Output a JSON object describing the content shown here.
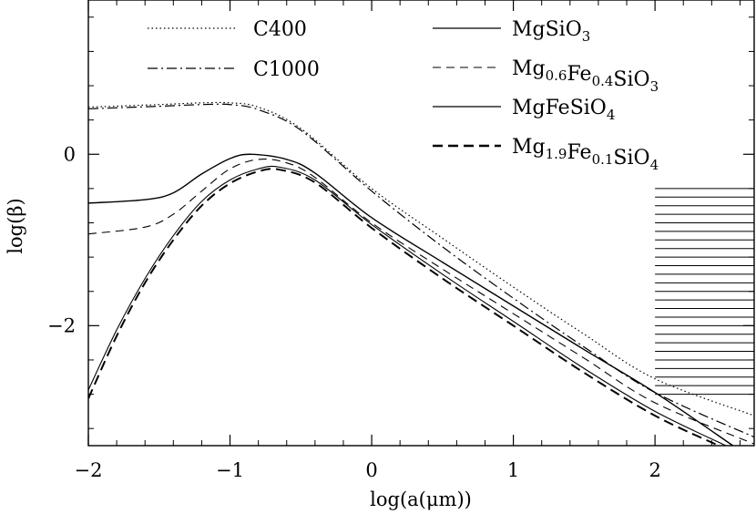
{
  "chart_data": {
    "type": "line",
    "title": "",
    "xlabel": "log(a(μm))",
    "ylabel": "log(β)",
    "xlim": [
      -2,
      2.7
    ],
    "ylim": [
      -3.4,
      1.8
    ],
    "x_ticks": [
      -2,
      -1,
      0,
      1,
      2
    ],
    "x_tick_labels": [
      "−2",
      "−1",
      "0",
      "1",
      "2"
    ],
    "y_ticks": [
      0,
      -2
    ],
    "y_tick_labels": [
      "0",
      "−2"
    ],
    "series": [
      {
        "name": "C400",
        "style": "dotted",
        "x": [
          -2,
          -1.5,
          -1.2,
          -1.0,
          -0.8,
          -0.5,
          0,
          0.5,
          1,
          1.5,
          2,
          2.7
        ],
        "y": [
          0.55,
          0.58,
          0.6,
          0.6,
          0.55,
          0.3,
          -0.4,
          -0.98,
          -1.55,
          -2.1,
          -2.62,
          -3.05
        ]
      },
      {
        "name": "C1000",
        "style": "dashdot",
        "x": [
          -2,
          -1.5,
          -1.2,
          -1.0,
          -0.8,
          -0.5,
          0,
          0.5,
          1,
          1.5,
          2,
          2.7
        ],
        "y": [
          0.53,
          0.56,
          0.58,
          0.58,
          0.52,
          0.28,
          -0.43,
          -1.08,
          -1.68,
          -2.25,
          -2.78,
          -3.3
        ]
      },
      {
        "name": "MgSiO3",
        "style": "solid",
        "width": 1.4,
        "x": [
          -2,
          -1.6,
          -1.4,
          -1.2,
          -1.0,
          -0.85,
          -0.6,
          -0.4,
          0,
          0.5,
          1,
          1.5,
          2,
          2.55
        ],
        "y": [
          -0.57,
          -0.53,
          -0.45,
          -0.23,
          -0.05,
          0.0,
          -0.06,
          -0.22,
          -0.74,
          -1.26,
          -1.77,
          -2.28,
          -2.78,
          -3.4
        ]
      },
      {
        "name": "Mg0.6Fe0.4SiO3",
        "style": "dashed",
        "width": 1.1,
        "x": [
          -2,
          -1.6,
          -1.4,
          -1.2,
          -1.0,
          -0.8,
          -0.6,
          -0.4,
          0,
          0.5,
          1,
          1.5,
          2,
          2.7
        ],
        "y": [
          -0.93,
          -0.85,
          -0.7,
          -0.43,
          -0.17,
          -0.06,
          -0.1,
          -0.27,
          -0.8,
          -1.34,
          -1.86,
          -2.38,
          -2.9,
          -3.38
        ]
      },
      {
        "name": "MgFeSiO4",
        "style": "solid",
        "width": 1.1,
        "x": [
          -2,
          -1.8,
          -1.6,
          -1.4,
          -1.2,
          -1.0,
          -0.8,
          -0.65,
          -0.4,
          0,
          0.5,
          1,
          1.5,
          2,
          2.5
        ],
        "y": [
          -2.75,
          -2.05,
          -1.45,
          -0.95,
          -0.55,
          -0.3,
          -0.17,
          -0.15,
          -0.3,
          -0.82,
          -1.4,
          -1.95,
          -2.5,
          -3.0,
          -3.4
        ]
      },
      {
        "name": "Mg1.9Fe0.1SiO4",
        "style": "dashed-bold",
        "width": 2,
        "x": [
          -2,
          -1.8,
          -1.6,
          -1.4,
          -1.2,
          -1.0,
          -0.8,
          -0.65,
          -0.4,
          0,
          0.5,
          1,
          1.5,
          2,
          2.45
        ],
        "y": [
          -2.85,
          -2.12,
          -1.5,
          -1.0,
          -0.6,
          -0.34,
          -0.2,
          -0.18,
          -0.33,
          -0.86,
          -1.45,
          -2.0,
          -2.55,
          -3.05,
          -3.4
        ]
      }
    ],
    "hatch_region": {
      "x": [
        2.0,
        2.7
      ],
      "y": [
        -2.8,
        -0.4
      ]
    },
    "legend": [
      {
        "key": "C400",
        "base": "C400",
        "s1": "",
        "m": "",
        "s2": "",
        "t": "",
        "s3": "",
        "style": "dotted",
        "col": "left"
      },
      {
        "key": "C1000",
        "base": "C1000",
        "s1": "",
        "m": "",
        "s2": "",
        "t": "",
        "s3": "",
        "style": "dashdot",
        "col": "left"
      },
      {
        "key": "MgSiO3",
        "base": "MgSiO",
        "s1": "3",
        "m": "",
        "s2": "",
        "t": "",
        "s3": "",
        "style": "solid",
        "col": "right"
      },
      {
        "key": "Mg0.6Fe0.4SiO3",
        "base": "Mg",
        "s1": "0.6",
        "m": "Fe",
        "s2": "0.4",
        "t": "SiO",
        "s3": "3",
        "style": "dashed",
        "col": "right"
      },
      {
        "key": "MgFeSiO4",
        "base": "MgFeSiO",
        "s1": "4",
        "m": "",
        "s2": "",
        "t": "",
        "s3": "",
        "style": "solid",
        "col": "right"
      },
      {
        "key": "Mg1.9Fe0.1SiO4",
        "base": "Mg",
        "s1": "1.9",
        "m": "Fe",
        "s2": "0.1",
        "t": "SiO",
        "s3": "4",
        "style": "dashed-bold",
        "col": "right"
      }
    ]
  }
}
